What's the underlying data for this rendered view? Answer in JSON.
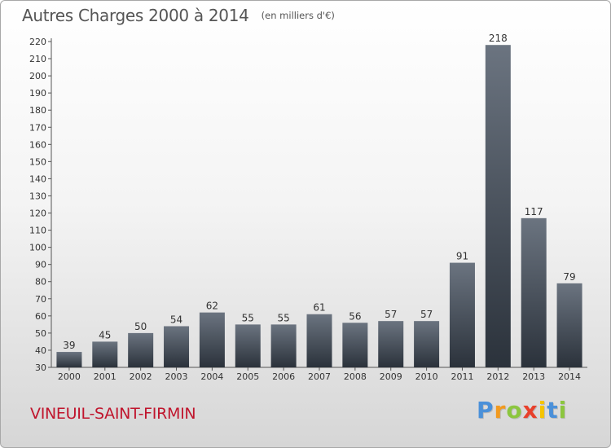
{
  "header": {
    "title": "Autres Charges 2000 à 2014",
    "subtitle": "(en milliers d'€)"
  },
  "footer": {
    "commune": "VINEUIL-SAINT-FIRMIN",
    "logo_letters": [
      {
        "char": "P",
        "color": "#4a90d9"
      },
      {
        "char": "r",
        "color": "#f29a1f"
      },
      {
        "char": "o",
        "color": "#8cc63f"
      },
      {
        "char": "x",
        "color": "#e8402b"
      },
      {
        "char": "i",
        "color": "#f5c400"
      },
      {
        "char": "t",
        "color": "#4a90d9"
      },
      {
        "char": "i",
        "color": "#8cc63f"
      }
    ]
  },
  "colors": {
    "commune_text": "#c0152d",
    "bar_top": "#6b7480",
    "bar_bottom": "#2b323b",
    "axis_text": "#333333"
  },
  "chart_data": {
    "type": "bar",
    "title": "Autres Charges 2000 à 2014",
    "subtitle": "(en milliers d'€)",
    "xlabel": "",
    "ylabel": "",
    "categories": [
      "2000",
      "2001",
      "2002",
      "2003",
      "2004",
      "2005",
      "2006",
      "2007",
      "2008",
      "2009",
      "2010",
      "2011",
      "2012",
      "2013",
      "2014"
    ],
    "values": [
      39,
      45,
      50,
      54,
      62,
      55,
      55,
      61,
      56,
      57,
      57,
      91,
      218,
      117,
      79
    ],
    "ylim": [
      30,
      220
    ],
    "yticks": [
      30,
      40,
      50,
      60,
      70,
      80,
      90,
      100,
      110,
      120,
      130,
      140,
      150,
      160,
      170,
      180,
      190,
      200,
      210,
      220
    ],
    "grid": false,
    "legend": "none"
  }
}
